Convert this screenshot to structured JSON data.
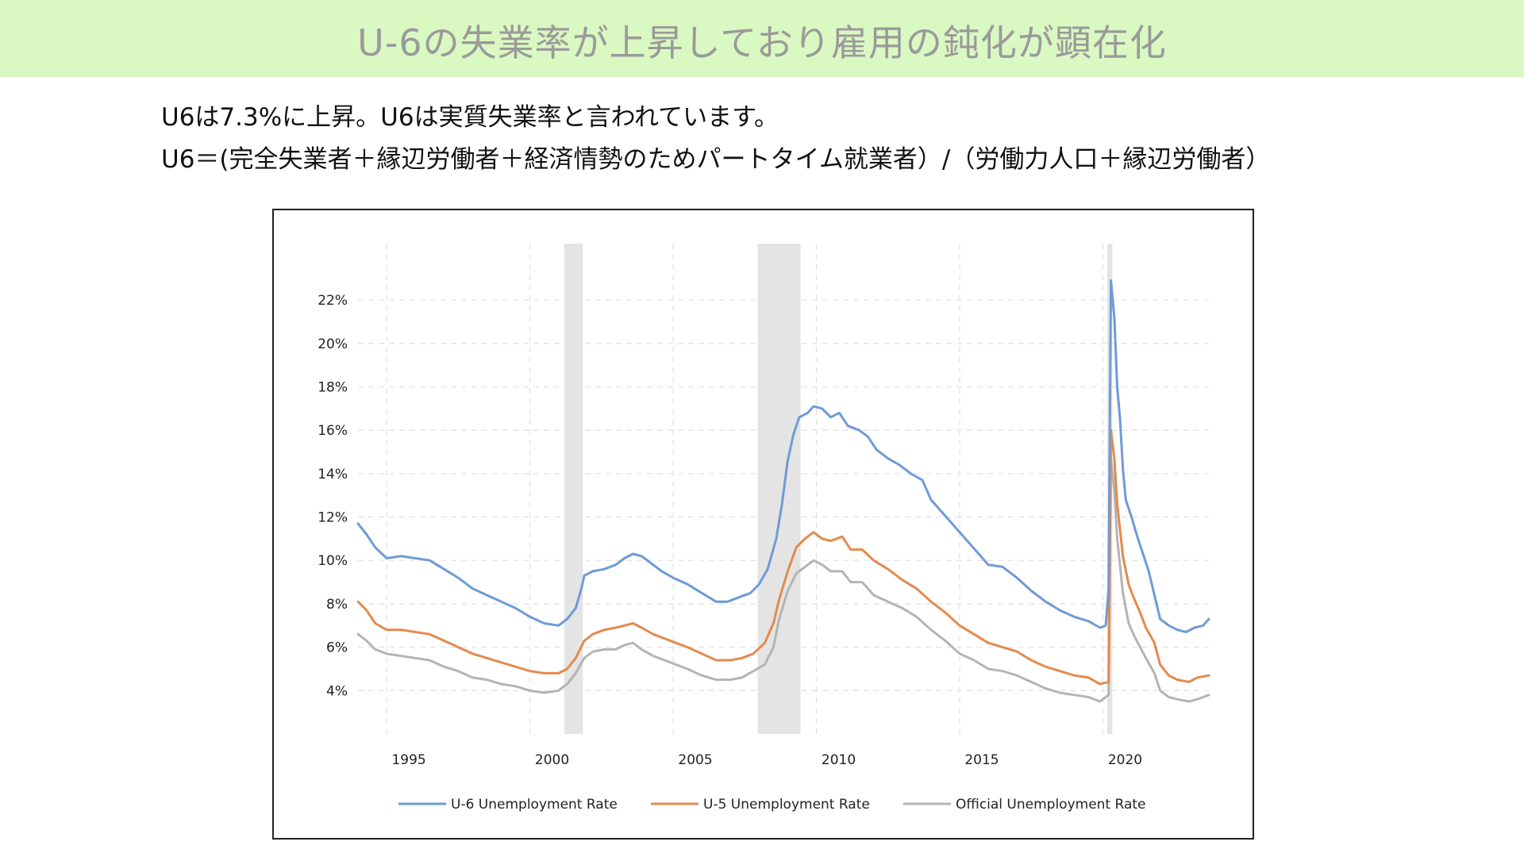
{
  "header": {
    "title": "U-6の失業率が上昇しており雇用の鈍化が顕在化",
    "banner_color": "#daf8c2"
  },
  "body": {
    "line1": "U6は7.3%に上昇。U6は実質失業率と言われています。",
    "line2": "U6＝(完全失業者＋縁辺労働者＋経済情勢のためパートタイム就業者）/（労働力人口＋縁辺労働者）"
  },
  "chart_data": {
    "type": "line",
    "title": "",
    "xlabel": "",
    "ylabel": "",
    "xlim": [
      1994.0,
      2023.7
    ],
    "ylim": [
      2.0,
      24.6
    ],
    "x_ticks": [
      1995,
      2000,
      2005,
      2010,
      2015,
      2020
    ],
    "x_tick_labels": [
      "1995",
      "2000",
      "2005",
      "2010",
      "2015",
      "2020"
    ],
    "y_ticks": [
      4,
      6,
      8,
      10,
      12,
      14,
      16,
      18,
      20,
      22
    ],
    "y_tick_labels": [
      "4%",
      "6%",
      "8%",
      "10%",
      "12%",
      "14%",
      "16%",
      "18%",
      "20%",
      "22%"
    ],
    "grid": true,
    "legend_position": "bottom",
    "recessions": [
      [
        2001.2,
        2001.85
      ],
      [
        2007.95,
        2009.45
      ],
      [
        2020.15,
        2020.33
      ]
    ],
    "series": [
      {
        "name": "U-6 Unemployment Rate",
        "color": "#6f9bd6",
        "points": [
          [
            1994.0,
            11.7
          ],
          [
            1994.3,
            11.2
          ],
          [
            1994.6,
            10.6
          ],
          [
            1995.0,
            10.1
          ],
          [
            1995.5,
            10.2
          ],
          [
            1996.0,
            10.1
          ],
          [
            1996.5,
            10.0
          ],
          [
            1997.0,
            9.6
          ],
          [
            1997.5,
            9.2
          ],
          [
            1998.0,
            8.7
          ],
          [
            1998.5,
            8.4
          ],
          [
            1999.0,
            8.1
          ],
          [
            1999.5,
            7.8
          ],
          [
            2000.0,
            7.4
          ],
          [
            2000.5,
            7.1
          ],
          [
            2001.0,
            7.0
          ],
          [
            2001.3,
            7.3
          ],
          [
            2001.6,
            7.8
          ],
          [
            2001.8,
            8.7
          ],
          [
            2001.9,
            9.3
          ],
          [
            2002.2,
            9.5
          ],
          [
            2002.6,
            9.6
          ],
          [
            2003.0,
            9.8
          ],
          [
            2003.3,
            10.1
          ],
          [
            2003.6,
            10.3
          ],
          [
            2003.9,
            10.2
          ],
          [
            2004.2,
            9.9
          ],
          [
            2004.6,
            9.5
          ],
          [
            2005.0,
            9.2
          ],
          [
            2005.5,
            8.9
          ],
          [
            2006.0,
            8.5
          ],
          [
            2006.5,
            8.1
          ],
          [
            2006.9,
            8.1
          ],
          [
            2007.3,
            8.3
          ],
          [
            2007.7,
            8.5
          ],
          [
            2008.0,
            8.9
          ],
          [
            2008.3,
            9.6
          ],
          [
            2008.6,
            11.0
          ],
          [
            2008.8,
            12.6
          ],
          [
            2009.0,
            14.6
          ],
          [
            2009.2,
            15.8
          ],
          [
            2009.4,
            16.6
          ],
          [
            2009.7,
            16.8
          ],
          [
            2009.9,
            17.1
          ],
          [
            2010.2,
            17.0
          ],
          [
            2010.5,
            16.6
          ],
          [
            2010.8,
            16.8
          ],
          [
            2011.1,
            16.2
          ],
          [
            2011.5,
            16.0
          ],
          [
            2011.8,
            15.7
          ],
          [
            2012.1,
            15.1
          ],
          [
            2012.5,
            14.7
          ],
          [
            2012.9,
            14.4
          ],
          [
            2013.3,
            14.0
          ],
          [
            2013.7,
            13.7
          ],
          [
            2014.0,
            12.8
          ],
          [
            2014.4,
            12.2
          ],
          [
            2014.8,
            11.6
          ],
          [
            2015.2,
            11.0
          ],
          [
            2015.6,
            10.4
          ],
          [
            2016.0,
            9.8
          ],
          [
            2016.5,
            9.7
          ],
          [
            2017.0,
            9.2
          ],
          [
            2017.5,
            8.6
          ],
          [
            2018.0,
            8.1
          ],
          [
            2018.5,
            7.7
          ],
          [
            2019.0,
            7.4
          ],
          [
            2019.5,
            7.2
          ],
          [
            2019.9,
            6.9
          ],
          [
            2020.1,
            7.0
          ],
          [
            2020.2,
            8.7
          ],
          [
            2020.28,
            22.9
          ],
          [
            2020.4,
            21.2
          ],
          [
            2020.5,
            18.0
          ],
          [
            2020.6,
            16.5
          ],
          [
            2020.7,
            14.2
          ],
          [
            2020.8,
            12.8
          ],
          [
            2021.0,
            12.0
          ],
          [
            2021.2,
            11.1
          ],
          [
            2021.4,
            10.3
          ],
          [
            2021.6,
            9.5
          ],
          [
            2021.8,
            8.4
          ],
          [
            2022.0,
            7.3
          ],
          [
            2022.3,
            7.0
          ],
          [
            2022.6,
            6.8
          ],
          [
            2022.9,
            6.7
          ],
          [
            2023.2,
            6.9
          ],
          [
            2023.5,
            7.0
          ],
          [
            2023.7,
            7.3
          ]
        ]
      },
      {
        "name": "U-5 Unemployment Rate",
        "color": "#e48a4e",
        "points": [
          [
            1994.0,
            8.1
          ],
          [
            1994.3,
            7.7
          ],
          [
            1994.6,
            7.1
          ],
          [
            1995.0,
            6.8
          ],
          [
            1995.5,
            6.8
          ],
          [
            1996.0,
            6.7
          ],
          [
            1996.5,
            6.6
          ],
          [
            1997.0,
            6.3
          ],
          [
            1997.5,
            6.0
          ],
          [
            1998.0,
            5.7
          ],
          [
            1998.5,
            5.5
          ],
          [
            1999.0,
            5.3
          ],
          [
            1999.5,
            5.1
          ],
          [
            2000.0,
            4.9
          ],
          [
            2000.5,
            4.8
          ],
          [
            2001.0,
            4.8
          ],
          [
            2001.3,
            5.0
          ],
          [
            2001.6,
            5.5
          ],
          [
            2001.9,
            6.3
          ],
          [
            2002.2,
            6.6
          ],
          [
            2002.6,
            6.8
          ],
          [
            2003.0,
            6.9
          ],
          [
            2003.3,
            7.0
          ],
          [
            2003.6,
            7.1
          ],
          [
            2003.9,
            6.9
          ],
          [
            2004.3,
            6.6
          ],
          [
            2004.7,
            6.4
          ],
          [
            2005.1,
            6.2
          ],
          [
            2005.5,
            6.0
          ],
          [
            2006.0,
            5.7
          ],
          [
            2006.5,
            5.4
          ],
          [
            2007.0,
            5.4
          ],
          [
            2007.4,
            5.5
          ],
          [
            2007.8,
            5.7
          ],
          [
            2008.2,
            6.2
          ],
          [
            2008.5,
            7.1
          ],
          [
            2008.7,
            8.2
          ],
          [
            2009.0,
            9.5
          ],
          [
            2009.3,
            10.6
          ],
          [
            2009.6,
            11.0
          ],
          [
            2009.9,
            11.3
          ],
          [
            2010.2,
            11.0
          ],
          [
            2010.5,
            10.9
          ],
          [
            2010.9,
            11.1
          ],
          [
            2011.2,
            10.5
          ],
          [
            2011.6,
            10.5
          ],
          [
            2012.0,
            10.0
          ],
          [
            2012.5,
            9.6
          ],
          [
            2013.0,
            9.1
          ],
          [
            2013.5,
            8.7
          ],
          [
            2014.0,
            8.1
          ],
          [
            2014.5,
            7.6
          ],
          [
            2015.0,
            7.0
          ],
          [
            2015.5,
            6.6
          ],
          [
            2016.0,
            6.2
          ],
          [
            2016.5,
            6.0
          ],
          [
            2017.0,
            5.8
          ],
          [
            2017.5,
            5.4
          ],
          [
            2018.0,
            5.1
          ],
          [
            2018.5,
            4.9
          ],
          [
            2019.0,
            4.7
          ],
          [
            2019.5,
            4.6
          ],
          [
            2019.9,
            4.3
          ],
          [
            2020.2,
            4.4
          ],
          [
            2020.28,
            16.0
          ],
          [
            2020.4,
            14.7
          ],
          [
            2020.5,
            12.6
          ],
          [
            2020.7,
            10.2
          ],
          [
            2020.9,
            8.9
          ],
          [
            2021.1,
            8.2
          ],
          [
            2021.3,
            7.6
          ],
          [
            2021.5,
            6.9
          ],
          [
            2021.8,
            6.2
          ],
          [
            2022.0,
            5.2
          ],
          [
            2022.3,
            4.7
          ],
          [
            2022.6,
            4.5
          ],
          [
            2023.0,
            4.4
          ],
          [
            2023.3,
            4.6
          ],
          [
            2023.7,
            4.7
          ]
        ]
      },
      {
        "name": "Official Unemployment Rate",
        "color": "#b4b4b4",
        "points": [
          [
            1994.0,
            6.6
          ],
          [
            1994.3,
            6.3
          ],
          [
            1994.6,
            5.9
          ],
          [
            1995.0,
            5.7
          ],
          [
            1995.5,
            5.6
          ],
          [
            1996.0,
            5.5
          ],
          [
            1996.5,
            5.4
          ],
          [
            1997.0,
            5.1
          ],
          [
            1997.5,
            4.9
          ],
          [
            1998.0,
            4.6
          ],
          [
            1998.5,
            4.5
          ],
          [
            1999.0,
            4.3
          ],
          [
            1999.5,
            4.2
          ],
          [
            2000.0,
            4.0
          ],
          [
            2000.5,
            3.9
          ],
          [
            2001.0,
            4.0
          ],
          [
            2001.3,
            4.3
          ],
          [
            2001.6,
            4.8
          ],
          [
            2001.9,
            5.5
          ],
          [
            2002.2,
            5.8
          ],
          [
            2002.6,
            5.9
          ],
          [
            2003.0,
            5.9
          ],
          [
            2003.3,
            6.1
          ],
          [
            2003.6,
            6.2
          ],
          [
            2003.9,
            5.9
          ],
          [
            2004.3,
            5.6
          ],
          [
            2004.7,
            5.4
          ],
          [
            2005.1,
            5.2
          ],
          [
            2005.5,
            5.0
          ],
          [
            2006.0,
            4.7
          ],
          [
            2006.5,
            4.5
          ],
          [
            2007.0,
            4.5
          ],
          [
            2007.4,
            4.6
          ],
          [
            2007.8,
            4.9
          ],
          [
            2008.2,
            5.2
          ],
          [
            2008.5,
            6.0
          ],
          [
            2008.7,
            7.3
          ],
          [
            2009.0,
            8.6
          ],
          [
            2009.3,
            9.4
          ],
          [
            2009.6,
            9.7
          ],
          [
            2009.9,
            10.0
          ],
          [
            2010.2,
            9.8
          ],
          [
            2010.5,
            9.5
          ],
          [
            2010.9,
            9.5
          ],
          [
            2011.2,
            9.0
          ],
          [
            2011.6,
            9.0
          ],
          [
            2012.0,
            8.4
          ],
          [
            2012.5,
            8.1
          ],
          [
            2013.0,
            7.8
          ],
          [
            2013.5,
            7.4
          ],
          [
            2014.0,
            6.8
          ],
          [
            2014.5,
            6.3
          ],
          [
            2015.0,
            5.7
          ],
          [
            2015.5,
            5.4
          ],
          [
            2016.0,
            5.0
          ],
          [
            2016.5,
            4.9
          ],
          [
            2017.0,
            4.7
          ],
          [
            2017.5,
            4.4
          ],
          [
            2018.0,
            4.1
          ],
          [
            2018.5,
            3.9
          ],
          [
            2019.0,
            3.8
          ],
          [
            2019.5,
            3.7
          ],
          [
            2019.9,
            3.5
          ],
          [
            2020.2,
            3.8
          ],
          [
            2020.28,
            14.7
          ],
          [
            2020.4,
            13.2
          ],
          [
            2020.5,
            11.0
          ],
          [
            2020.7,
            8.5
          ],
          [
            2020.9,
            7.1
          ],
          [
            2021.1,
            6.5
          ],
          [
            2021.3,
            6.0
          ],
          [
            2021.5,
            5.5
          ],
          [
            2021.8,
            4.8
          ],
          [
            2022.0,
            4.0
          ],
          [
            2022.3,
            3.7
          ],
          [
            2022.6,
            3.6
          ],
          [
            2023.0,
            3.5
          ],
          [
            2023.3,
            3.6
          ],
          [
            2023.7,
            3.8
          ]
        ]
      }
    ]
  }
}
